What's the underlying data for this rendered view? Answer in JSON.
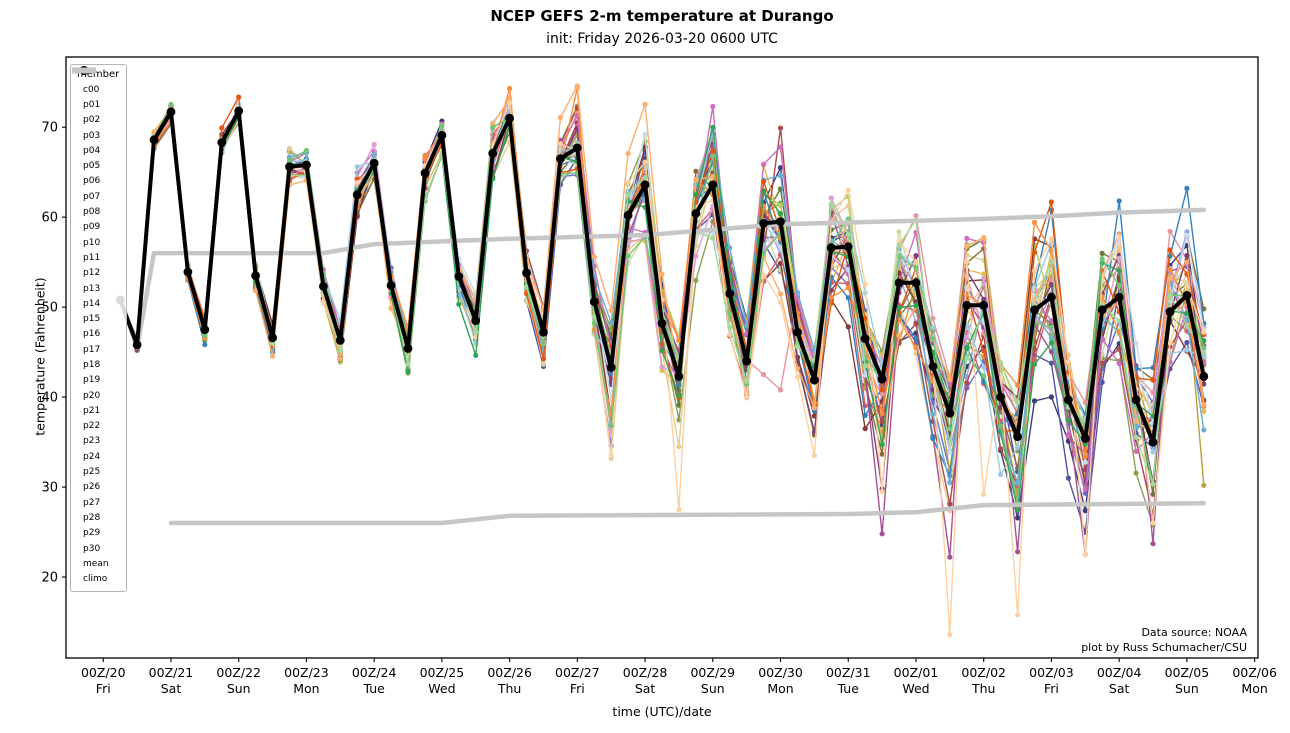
{
  "header": {
    "title": "NCEP GEFS 2-m temperature at Durango",
    "subtitle": "init: Friday 2026-03-20 0600 UTC"
  },
  "axes": {
    "xlabel": "time (UTC)/date",
    "ylabel": "temperature (Fahrenheit)",
    "y_ticks": [
      20,
      30,
      40,
      50,
      60,
      70
    ],
    "x_ticks": [
      {
        "utc": "00Z/20",
        "day": "Fri"
      },
      {
        "utc": "00Z/21",
        "day": "Sat"
      },
      {
        "utc": "00Z/22",
        "day": "Sun"
      },
      {
        "utc": "00Z/23",
        "day": "Mon"
      },
      {
        "utc": "00Z/24",
        "day": "Tue"
      },
      {
        "utc": "00Z/25",
        "day": "Wed"
      },
      {
        "utc": "00Z/26",
        "day": "Thu"
      },
      {
        "utc": "00Z/27",
        "day": "Fri"
      },
      {
        "utc": "00Z/28",
        "day": "Sat"
      },
      {
        "utc": "00Z/29",
        "day": "Sun"
      },
      {
        "utc": "00Z/30",
        "day": "Mon"
      },
      {
        "utc": "00Z/31",
        "day": "Tue"
      },
      {
        "utc": "00Z/01",
        "day": "Wed"
      },
      {
        "utc": "00Z/02",
        "day": "Thu"
      },
      {
        "utc": "00Z/03",
        "day": "Fri"
      },
      {
        "utc": "00Z/04",
        "day": "Sat"
      },
      {
        "utc": "00Z/05",
        "day": "Sun"
      },
      {
        "utc": "00Z/06",
        "day": "Mon"
      }
    ]
  },
  "legend": {
    "title": "member"
  },
  "annotations": {
    "source": "Data source: NOAA",
    "credit": "plot by Russ Schumacher/CSU"
  },
  "chart_data": {
    "type": "line",
    "title": "NCEP GEFS 2-m temperature at Durango",
    "subtitle": "init: Friday 2026-03-20 0600 UTC",
    "xlabel": "time (UTC)/date",
    "ylabel": "temperature (Fahrenheit)",
    "init_time": "2026-03-20 0600 UTC",
    "step_hours": 6,
    "n_steps": 65,
    "xlim_hours": [
      -19.2,
      403.2
    ],
    "ylim": [
      11,
      77.8
    ],
    "x_tick_start_hour": -6,
    "x_tick_interval_hours": 24,
    "grid": false,
    "legend_position": "upper left",
    "frame_color": "#000000",
    "mean": {
      "label": "mean",
      "color": "#000000",
      "values": [
        50.8,
        45.8,
        68.6,
        71.7,
        53.9,
        47.5,
        68.3,
        71.8,
        53.5,
        46.6,
        65.6,
        65.8,
        52.3,
        46.3,
        62.5,
        66.0,
        52.4,
        45.4,
        64.9,
        69.1,
        53.4,
        48.5,
        67.1,
        71.0,
        53.8,
        47.2,
        66.5,
        67.7,
        50.6,
        43.3,
        60.2,
        63.6,
        48.2,
        42.3,
        60.4,
        63.6,
        51.5,
        44.0,
        59.3,
        59.5,
        47.2,
        41.9,
        56.6,
        56.7,
        46.5,
        42.0,
        52.7,
        52.7,
        43.4,
        38.2,
        50.2,
        50.2,
        40.0,
        35.6,
        49.7,
        51.1,
        39.7,
        35.4,
        49.7,
        51.1,
        39.7,
        35.0,
        49.5,
        51.3,
        42.3
      ]
    },
    "climo": {
      "label": "climo",
      "color": "#c6c6c6",
      "upper_points": [
        [
          0,
          51
        ],
        [
          1,
          45.5
        ],
        [
          2,
          56
        ],
        [
          12,
          56
        ],
        [
          15,
          57
        ],
        [
          23,
          57.6
        ],
        [
          31,
          58
        ],
        [
          39,
          59.2
        ],
        [
          47,
          59.6
        ],
        [
          51,
          59.8
        ],
        [
          55,
          60.1
        ],
        [
          59,
          60.5
        ],
        [
          64,
          60.8
        ]
      ],
      "lower_points": [
        [
          3,
          26
        ],
        [
          19,
          26
        ],
        [
          23,
          26.8
        ],
        [
          43,
          27
        ],
        [
          47,
          27.2
        ],
        [
          51,
          28
        ],
        [
          64,
          28.2
        ]
      ]
    },
    "members": [
      {
        "id": "c00",
        "color": "#393b79"
      },
      {
        "id": "p01",
        "color": "#5254a3"
      },
      {
        "id": "p02",
        "color": "#6b6ecf"
      },
      {
        "id": "p03",
        "color": "#9c9ede"
      },
      {
        "id": "p04",
        "color": "#637939"
      },
      {
        "id": "p05",
        "color": "#8ca252"
      },
      {
        "id": "p06",
        "color": "#b5cf6b"
      },
      {
        "id": "p07",
        "color": "#cedb9c"
      },
      {
        "id": "p08",
        "color": "#8c6d31"
      },
      {
        "id": "p09",
        "color": "#bd9e39"
      },
      {
        "id": "p10",
        "color": "#e7ba52"
      },
      {
        "id": "p11",
        "color": "#e7cb94"
      },
      {
        "id": "p12",
        "color": "#843c39"
      },
      {
        "id": "p13",
        "color": "#ad494a"
      },
      {
        "id": "p14",
        "color": "#d6616b"
      },
      {
        "id": "p15",
        "color": "#e7969c"
      },
      {
        "id": "p16",
        "color": "#7b4173"
      },
      {
        "id": "p17",
        "color": "#a55194"
      },
      {
        "id": "p18",
        "color": "#ce6dbd"
      },
      {
        "id": "p19",
        "color": "#de9ed6"
      },
      {
        "id": "p20",
        "color": "#3182bd"
      },
      {
        "id": "p21",
        "color": "#6baed6"
      },
      {
        "id": "p22",
        "color": "#9ecae1"
      },
      {
        "id": "p23",
        "color": "#c6dbef"
      },
      {
        "id": "p24",
        "color": "#e6550d"
      },
      {
        "id": "p25",
        "color": "#fd8d3c"
      },
      {
        "id": "p26",
        "color": "#fdae6b"
      },
      {
        "id": "p27",
        "color": "#fdd0a2"
      },
      {
        "id": "p28",
        "color": "#31a354"
      },
      {
        "id": "p29",
        "color": "#74c476"
      },
      {
        "id": "p30",
        "color": "#a1d99b"
      }
    ],
    "member_spread": {
      "low": [
        0.3,
        1.0,
        1.2,
        1.2,
        1.2,
        1.5,
        1.5,
        1.5,
        1.8,
        2.0,
        2.0,
        1.8,
        2.0,
        2.5,
        2.5,
        2.0,
        2.5,
        3.0,
        3.0,
        2.5,
        3.0,
        3.5,
        3.0,
        2.5,
        3.5,
        4.5,
        3.0,
        3.0,
        4.5,
        8.5,
        5.0,
        7.0,
        5.5,
        7.0,
        8.0,
        8.0,
        6.0,
        7.0,
        8.0,
        9.0,
        7.0,
        7.0,
        7.5,
        8.0,
        8.0,
        9.5,
        8.0,
        10.5,
        9.0,
        10.0,
        9.5,
        10.5,
        9.0,
        9.0,
        8.5,
        9.0,
        8.0,
        9.0,
        9.0,
        10.0,
        9.0,
        9.0,
        10.0,
        11.0,
        9.0
      ],
      "high": [
        0.3,
        1.0,
        1.2,
        1.5,
        1.2,
        1.5,
        1.5,
        1.5,
        1.5,
        1.8,
        2.0,
        2.0,
        1.8,
        2.2,
        3.0,
        2.0,
        2.2,
        2.5,
        3.0,
        3.0,
        2.5,
        2.8,
        3.0,
        3.5,
        2.8,
        3.0,
        4.0,
        5.5,
        4.0,
        5.5,
        5.5,
        8.0,
        5.0,
        4.5,
        6.0,
        8.0,
        5.0,
        4.5,
        6.5,
        7.0,
        5.5,
        4.5,
        6.5,
        7.0,
        5.5,
        4.5,
        7.5,
        9.0,
        6.5,
        5.0,
        8.5,
        9.0,
        6.5,
        6.5,
        9.0,
        10.0,
        6.5,
        7.0,
        9.5,
        10.0,
        6.5,
        8.5,
        10.0,
        10.5,
        7.5
      ]
    },
    "member_outliers": {
      "p27": {
        "29": 33.5,
        "33": 27.5,
        "41": 33.5,
        "45": 29.5,
        "49": 13.6,
        "51": 29.2,
        "53": 15.8,
        "57": 22.5,
        "61": 26.0
      },
      "p17": {
        "45": 24.8,
        "49": 22.2,
        "53": 22.8,
        "57": 22.5,
        "61": 23.7
      },
      "p16": {
        "45": 29.8
      },
      "p18": {
        "35": 72.3,
        "39": 67.8
      },
      "p13": {
        "39": 69.9
      },
      "p25": {
        "23": 74.3,
        "27": 74.4
      },
      "p20": {
        "55": 60.8,
        "59": 61.8,
        "63": 63.2,
        "64": 48.2
      },
      "p09": {
        "64": 30.2
      },
      "p11": {
        "29": 33.2,
        "33": 34.5
      },
      "p15": {
        "38": 42.5,
        "39": 40.8
      }
    }
  }
}
